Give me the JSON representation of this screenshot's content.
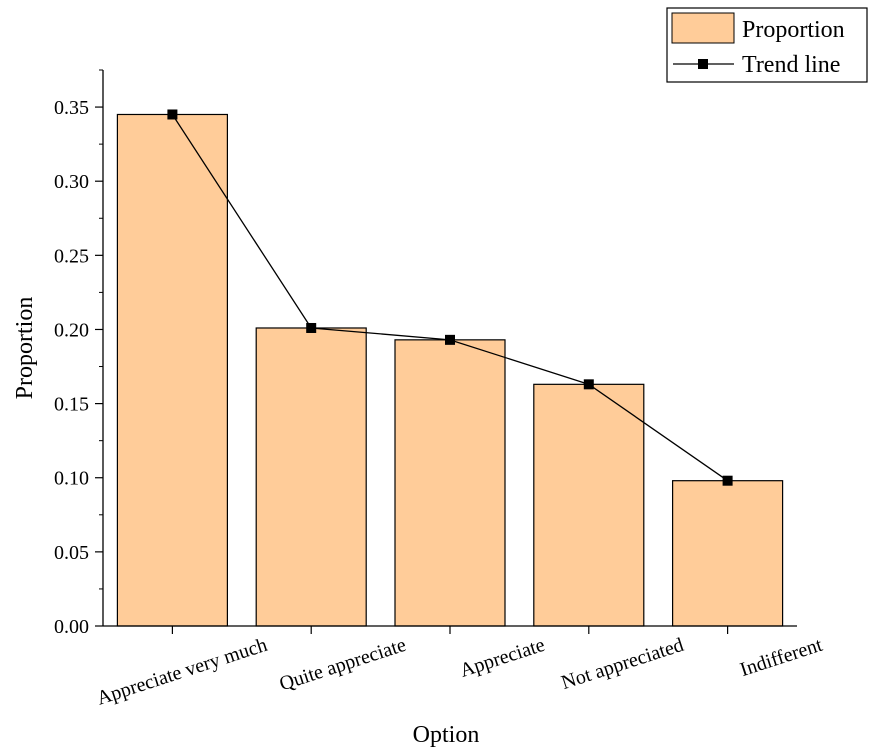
{
  "chart_data": {
    "type": "bar",
    "xlabel": "Option",
    "ylabel": "Proportion",
    "categories": [
      "Appreciate very much",
      "Quite appreciate",
      "Appreciate",
      "Not appreciated",
      "Indifferent"
    ],
    "series": [
      {
        "name": "Proportion",
        "kind": "bar",
        "values": [
          0.345,
          0.201,
          0.193,
          0.163,
          0.098
        ],
        "color": "#FFCC99"
      },
      {
        "name": "Trend line",
        "kind": "line",
        "values": [
          0.345,
          0.201,
          0.193,
          0.163,
          0.098
        ],
        "color": "#000000",
        "marker": "square"
      }
    ],
    "ylim": [
      0,
      0.375
    ],
    "yticks": [
      "0.00",
      "0.05",
      "0.10",
      "0.15",
      "0.20",
      "0.25",
      "0.30",
      "0.35"
    ],
    "ytick_values": [
      0,
      0.05,
      0.1,
      0.15,
      0.2,
      0.25,
      0.3,
      0.35
    ],
    "grid": false,
    "legend": "top-right"
  }
}
